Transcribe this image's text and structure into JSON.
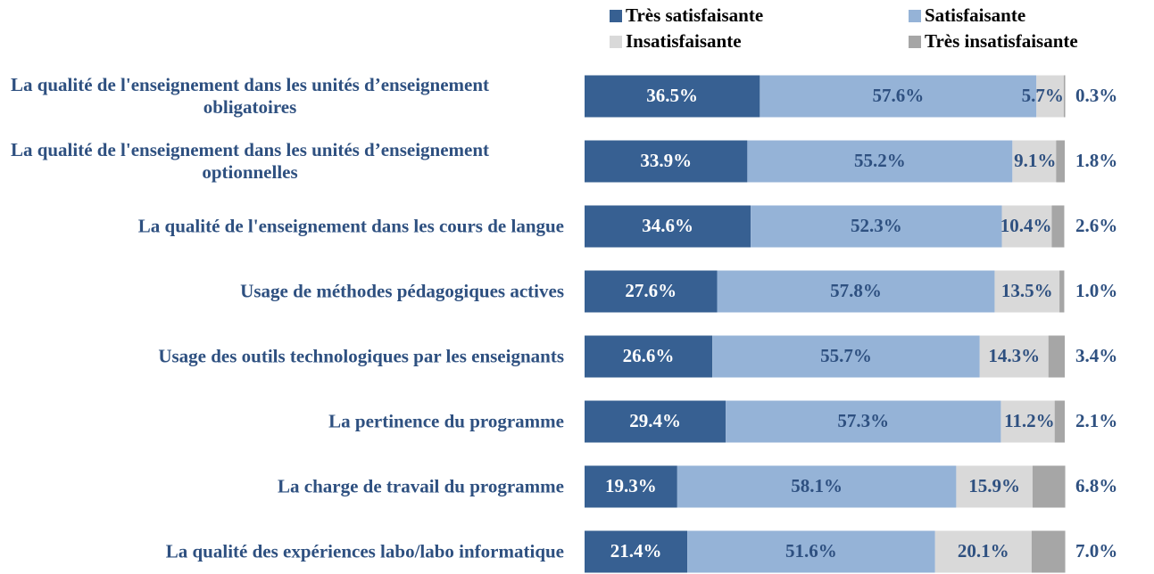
{
  "chart_data": {
    "type": "stacked-bar-horizontal",
    "categories": [
      "La qualité de l'enseignement dans les unités d’enseignement obligatoires",
      "La qualité de l'enseignement dans les unités d’enseignement optionnelles",
      "La qualité de l'enseignement dans les cours de langue",
      "Usage de méthodes pédagogiques actives",
      "Usage des outils technologiques par les enseignants",
      "La pertinence du programme",
      "La charge de travail du programme",
      "La qualité des expériences labo/labo informatique"
    ],
    "series": [
      {
        "name": "Très satisfaisante",
        "color": "#376092",
        "label_color": "#ffffff",
        "values": [
          36.5,
          33.9,
          34.6,
          27.6,
          26.6,
          29.4,
          19.3,
          21.4
        ],
        "value_labels": [
          "36.5%",
          "33.9%",
          "34.6%",
          "27.6%",
          "26.6%",
          "29.4%",
          "19.3%",
          "21.4%"
        ]
      },
      {
        "name": "Satisfaisante",
        "color": "#95b3d7",
        "label_color": "#2e5080",
        "values": [
          57.6,
          55.2,
          52.3,
          57.8,
          55.7,
          57.3,
          58.1,
          51.6
        ],
        "value_labels": [
          "57.6%",
          "55.2%",
          "52.3%",
          "57.8%",
          "55.7%",
          "57.3%",
          "58.1%",
          "51.6%"
        ]
      },
      {
        "name": "Insatisfaisante",
        "color": "#d9d9d9",
        "label_color": "#2e5080",
        "values": [
          5.7,
          9.1,
          10.4,
          13.5,
          14.3,
          11.2,
          15.9,
          20.1
        ],
        "value_labels": [
          "5.7%",
          "9.1%",
          "10.4%",
          "13.5%",
          "14.3%",
          "11.2%",
          "15.9%",
          "20.1%"
        ]
      },
      {
        "name": "Très insatisfaisante",
        "color": "#a6a6a6",
        "label_color": "#2e5080",
        "values": [
          0.3,
          1.8,
          2.6,
          1.0,
          3.4,
          2.1,
          6.8,
          7.0
        ],
        "value_labels": [
          "0.3%",
          "1.8%",
          "2.6%",
          "1.0%",
          "3.4%",
          "2.1%",
          "6.8%",
          "7.0%"
        ]
      }
    ],
    "xlim": [
      0,
      100
    ]
  }
}
